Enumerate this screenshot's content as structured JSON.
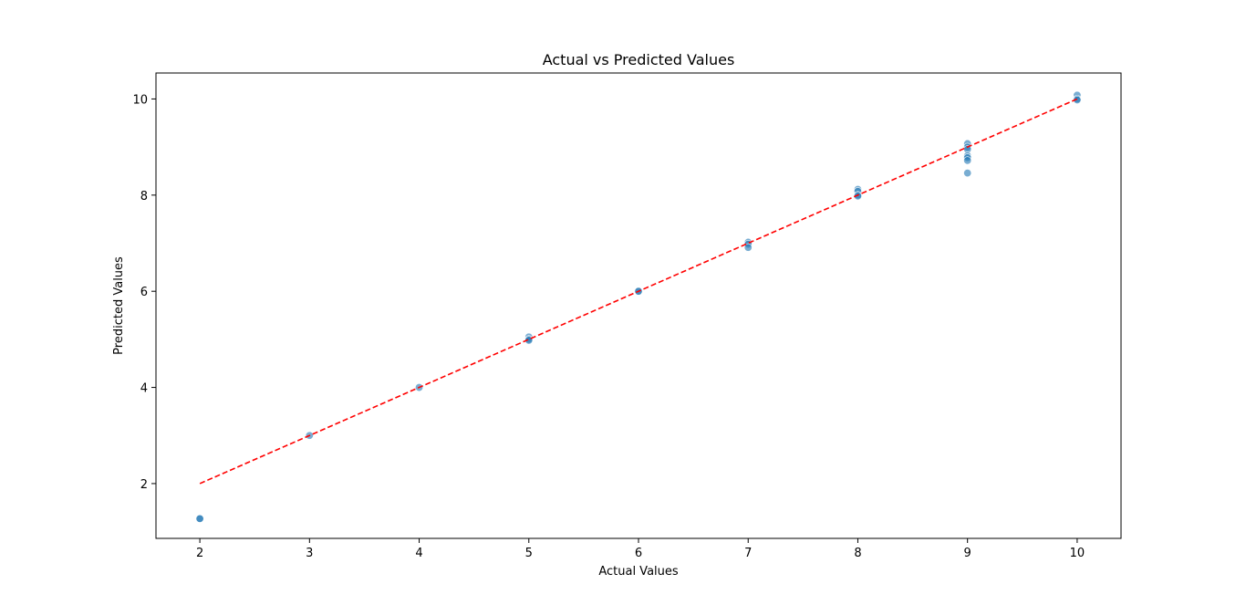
{
  "chart_data": {
    "type": "scatter",
    "title": "Actual vs Predicted Values",
    "xlabel": "Actual Values",
    "ylabel": "Predicted Values",
    "xlim": [
      1.6,
      10.4
    ],
    "ylim": [
      0.86,
      10.54
    ],
    "xticks": [
      2,
      3,
      4,
      5,
      6,
      7,
      8,
      9,
      10
    ],
    "yticks": [
      2,
      4,
      6,
      8,
      10
    ],
    "grid": false,
    "legend": "none",
    "point_color": "#1f77b4",
    "point_opacity": 0.6,
    "reference_line": {
      "x": [
        2,
        10
      ],
      "y": [
        2,
        10
      ],
      "color": "#ff0000",
      "style": "dashed"
    },
    "points": [
      {
        "x": 2,
        "y": 1.27
      },
      {
        "x": 2,
        "y": 1.27
      },
      {
        "x": 3,
        "y": 3.0
      },
      {
        "x": 4,
        "y": 4.0
      },
      {
        "x": 5,
        "y": 5.05
      },
      {
        "x": 5,
        "y": 5.0
      },
      {
        "x": 5,
        "y": 4.98
      },
      {
        "x": 6,
        "y": 6.0
      },
      {
        "x": 6,
        "y": 6.0
      },
      {
        "x": 7,
        "y": 7.02
      },
      {
        "x": 7,
        "y": 6.98
      },
      {
        "x": 7,
        "y": 6.91
      },
      {
        "x": 8,
        "y": 8.12
      },
      {
        "x": 8,
        "y": 8.08
      },
      {
        "x": 8,
        "y": 8.0
      },
      {
        "x": 8,
        "y": 7.98
      },
      {
        "x": 9,
        "y": 9.07
      },
      {
        "x": 9,
        "y": 9.0
      },
      {
        "x": 9,
        "y": 8.95
      },
      {
        "x": 9,
        "y": 8.82
      },
      {
        "x": 9,
        "y": 8.78
      },
      {
        "x": 9,
        "y": 8.72
      },
      {
        "x": 9,
        "y": 8.46
      },
      {
        "x": 10,
        "y": 10.08
      },
      {
        "x": 10,
        "y": 10.0
      },
      {
        "x": 10,
        "y": 9.98
      }
    ]
  }
}
